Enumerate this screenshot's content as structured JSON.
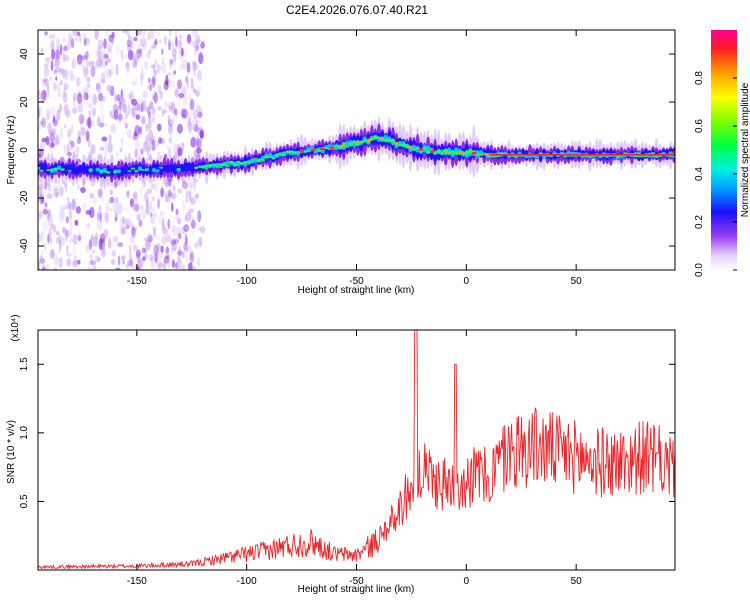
{
  "page_title": "C2E4.2026.076.07.40.R21",
  "chart_data": [
    {
      "type": "heatmap",
      "name": "spectrogram",
      "xlabel": "Height of straight line (km)",
      "ylabel": "Frequency (Hz)",
      "xlim": [
        -195,
        95
      ],
      "ylim": [
        -50,
        50
      ],
      "xticks": [
        -150,
        -100,
        -50,
        0,
        50
      ],
      "yticks": [
        -40,
        -20,
        0,
        20,
        40
      ],
      "ridge": [
        [
          -195,
          -8
        ],
        [
          -180,
          -8
        ],
        [
          -160,
          -9
        ],
        [
          -150,
          -8
        ],
        [
          -140,
          -8
        ],
        [
          -130,
          -8
        ],
        [
          -120,
          -7
        ],
        [
          -110,
          -6
        ],
        [
          -100,
          -5
        ],
        [
          -90,
          -3
        ],
        [
          -80,
          -1
        ],
        [
          -70,
          0
        ],
        [
          -60,
          1
        ],
        [
          -50,
          3
        ],
        [
          -40,
          5
        ],
        [
          -35,
          4
        ],
        [
          -30,
          2
        ],
        [
          -20,
          0
        ],
        [
          -10,
          -1
        ],
        [
          0,
          -1
        ],
        [
          10,
          -2
        ],
        [
          20,
          -2
        ],
        [
          50,
          -2
        ],
        [
          95,
          -2
        ]
      ],
      "colorbar": {
        "label": "Normalized spectral amplitude",
        "range": [
          0,
          1
        ],
        "ticks": [
          "0.0",
          "0.2",
          "0.4",
          "0.6",
          "0.8"
        ],
        "tick_values": [
          0,
          0.2,
          0.4,
          0.6,
          0.8
        ]
      }
    },
    {
      "type": "line",
      "name": "snr",
      "xlabel": "Height of straight line (km)",
      "ylabel": "SNR (10 * v/v)",
      "scale_note": "(x10⁴)",
      "xlim": [
        -195,
        95
      ],
      "ylim": [
        0,
        1.75
      ],
      "xticks": [
        -150,
        -100,
        -50,
        0,
        50
      ],
      "yticks": [
        0.5,
        1.0,
        1.5
      ],
      "ytick_labels": [
        "0.5",
        "1.0",
        "1.5"
      ],
      "color": "#e8262b",
      "envelope": [
        [
          -195,
          0.03
        ],
        [
          -150,
          0.04
        ],
        [
          -125,
          0.06
        ],
        [
          -110,
          0.12
        ],
        [
          -100,
          0.16
        ],
        [
          -90,
          0.2
        ],
        [
          -80,
          0.25
        ],
        [
          -70,
          0.28
        ],
        [
          -60,
          0.16
        ],
        [
          -50,
          0.15
        ],
        [
          -40,
          0.3
        ],
        [
          -35,
          0.4
        ],
        [
          -30,
          0.55
        ],
        [
          -25,
          0.75
        ],
        [
          -20,
          0.85
        ],
        [
          -10,
          0.75
        ],
        [
          0,
          0.8
        ],
        [
          5,
          0.85
        ],
        [
          10,
          0.8
        ],
        [
          15,
          0.95
        ],
        [
          20,
          1.05
        ],
        [
          30,
          1.1
        ],
        [
          40,
          1.05
        ],
        [
          50,
          1.0
        ],
        [
          60,
          0.95
        ],
        [
          70,
          0.95
        ],
        [
          80,
          1.0
        ],
        [
          90,
          0.95
        ],
        [
          95,
          0.9
        ]
      ],
      "peaks": [
        [
          -23,
          1.75
        ],
        [
          -5,
          1.5
        ],
        [
          -20,
          0.6
        ]
      ]
    }
  ]
}
